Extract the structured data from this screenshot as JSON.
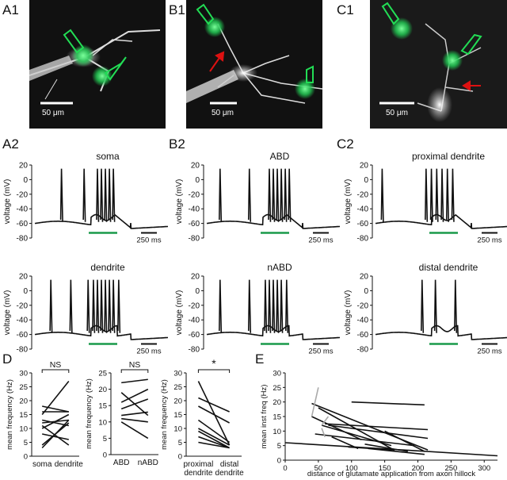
{
  "panels": {
    "a1": "A1",
    "b1": "B1",
    "c1": "C1",
    "a2": "A2",
    "b2": "B2",
    "c2": "C2",
    "d": "D",
    "e": "E"
  },
  "micrographs": {
    "scale_bar": "50 μm"
  },
  "traces": {
    "a_top": "soma",
    "a_bottom": "dendrite",
    "b_top": "ABD",
    "b_bottom": "nABD",
    "c_top": "proximal dendrite",
    "c_bottom": "distal dendrite",
    "y_label": "voltage (mV)",
    "y_ticks": [
      "20",
      "0",
      "-20",
      "-40",
      "-60",
      "-80"
    ],
    "time_scale": "250 ms"
  },
  "colors": {
    "stim": "#1a9a4a",
    "glutamate": "#22dd55",
    "arrow": "#dd1111",
    "trace": "#111111"
  },
  "chart_data": [
    {
      "type": "line",
      "panel": "D1",
      "categories": [
        "soma",
        "dendrite"
      ],
      "ylabel": "mean frequency (Hz)",
      "ylim": [
        0,
        30
      ],
      "y_ticks": [
        "0",
        "5",
        "10",
        "15",
        "20",
        "25",
        "30"
      ],
      "significance": "NS",
      "pairs": [
        [
          18,
          16
        ],
        [
          15,
          27
        ],
        [
          13,
          11
        ],
        [
          12,
          13
        ],
        [
          10,
          15
        ],
        [
          8,
          6
        ],
        [
          16,
          16
        ],
        [
          4,
          12
        ],
        [
          11,
          4
        ],
        [
          3,
          13
        ]
      ]
    },
    {
      "type": "line",
      "panel": "D2",
      "categories": [
        "ABD",
        "nABD"
      ],
      "ylabel": "mean frequency (Hz)",
      "ylim": [
        0,
        25
      ],
      "y_ticks": [
        "0",
        "5",
        "10",
        "15",
        "20",
        "25"
      ],
      "significance": "NS",
      "pairs": [
        [
          22,
          23
        ],
        [
          19,
          12
        ],
        [
          16,
          20
        ],
        [
          14,
          17
        ],
        [
          12,
          13
        ],
        [
          11,
          10
        ],
        [
          10,
          5
        ]
      ]
    },
    {
      "type": "line",
      "panel": "D3",
      "categories": [
        "proximal\ndendrite",
        "distal\ndendrite"
      ],
      "ylabel": "mean frequency (Hz)",
      "ylim": [
        0,
        30
      ],
      "y_ticks": [
        "0",
        "5",
        "10",
        "15",
        "20",
        "25",
        "30"
      ],
      "significance": "*",
      "pairs": [
        [
          27,
          4
        ],
        [
          21,
          16
        ],
        [
          18,
          12
        ],
        [
          13,
          5
        ],
        [
          10,
          4
        ],
        [
          9,
          3
        ],
        [
          7,
          3
        ],
        [
          5,
          3
        ]
      ]
    },
    {
      "type": "scatter",
      "panel": "E",
      "xlabel": "distance of glutamate application from axon hillock",
      "ylabel": "mean inst freq (Hz)",
      "xlim": [
        0,
        320
      ],
      "ylim": [
        0,
        30
      ],
      "x_ticks": [
        "0",
        "50",
        "100",
        "150",
        "200",
        "250",
        "300"
      ],
      "y_ticks": [
        "0",
        "5",
        "10",
        "15",
        "20",
        "25",
        "30"
      ],
      "segments": [
        {
          "x": [
            0,
            320
          ],
          "y": [
            6,
            1.5
          ],
          "color": "#111111"
        },
        {
          "x": [
            40,
            215
          ],
          "y": [
            19.5,
            3.5
          ],
          "color": "#111111"
        },
        {
          "x": [
            40,
            115
          ],
          "y": [
            15,
            7
          ],
          "color": "#111111"
        },
        {
          "x": [
            45,
            195
          ],
          "y": [
            9,
            5
          ],
          "color": "#111111"
        },
        {
          "x": [
            50,
            160
          ],
          "y": [
            18,
            4
          ],
          "color": "#111111"
        },
        {
          "x": [
            55,
            160
          ],
          "y": [
            12,
            5
          ],
          "color": "#111111"
        },
        {
          "x": [
            60,
            215
          ],
          "y": [
            12.5,
            10.5
          ],
          "color": "#111111"
        },
        {
          "x": [
            65,
            215
          ],
          "y": [
            12,
            7.5
          ],
          "color": "#111111"
        },
        {
          "x": [
            70,
            110
          ],
          "y": [
            8,
            4
          ],
          "color": "#111111"
        },
        {
          "x": [
            95,
            165
          ],
          "y": [
            4.5,
            3.5
          ],
          "color": "#111111"
        },
        {
          "x": [
            100,
            210
          ],
          "y": [
            20,
            19
          ],
          "color": "#111111"
        },
        {
          "x": [
            120,
            185
          ],
          "y": [
            5.5,
            3
          ],
          "color": "#111111"
        },
        {
          "x": [
            125,
            210
          ],
          "y": [
            4,
            2
          ],
          "color": "#111111"
        },
        {
          "x": [
            150,
            210
          ],
          "y": [
            10,
            3
          ],
          "color": "#111111"
        },
        {
          "x": [
            40,
            50
          ],
          "y": [
            15,
            25
          ],
          "color": "#aaaaaa"
        },
        {
          "x": [
            55,
            65
          ],
          "y": [
            12,
            15
          ],
          "color": "#aaaaaa"
        },
        {
          "x": [
            55,
            60
          ],
          "y": [
            11,
            8
          ],
          "color": "#aaaaaa"
        }
      ]
    }
  ]
}
